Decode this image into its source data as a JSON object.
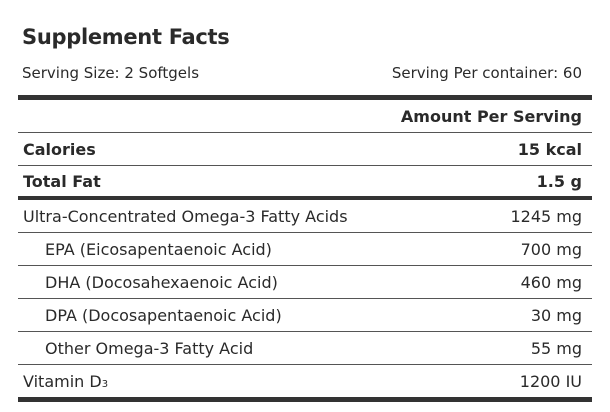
{
  "title": "Supplement Facts",
  "serving_size": "Serving Size: 2 Softgels",
  "servings_per_container": "Serving Per container: 60",
  "amount_header": "Amount Per Serving",
  "rows": [
    {
      "label": "Calories",
      "value": "15 kcal"
    },
    {
      "label": "Total Fat",
      "value": "1.5 g"
    },
    {
      "label": "Ultra-Concentrated Omega-3 Fatty Acids",
      "value": "1245 mg"
    },
    {
      "label": "EPA (Eicosapentaenoic Acid)",
      "value": "700 mg"
    },
    {
      "label": "DHA (Docosahexaenoic Acid)",
      "value": "460 mg"
    },
    {
      "label": "DPA (Docosapentaenoic Acid)",
      "value": "30 mg"
    },
    {
      "label": "Other Omega-3 Fatty Acid",
      "value": "55 mg"
    },
    {
      "label": "Vitamin D",
      "label_sub": "3",
      "value": "1200 IU"
    }
  ]
}
